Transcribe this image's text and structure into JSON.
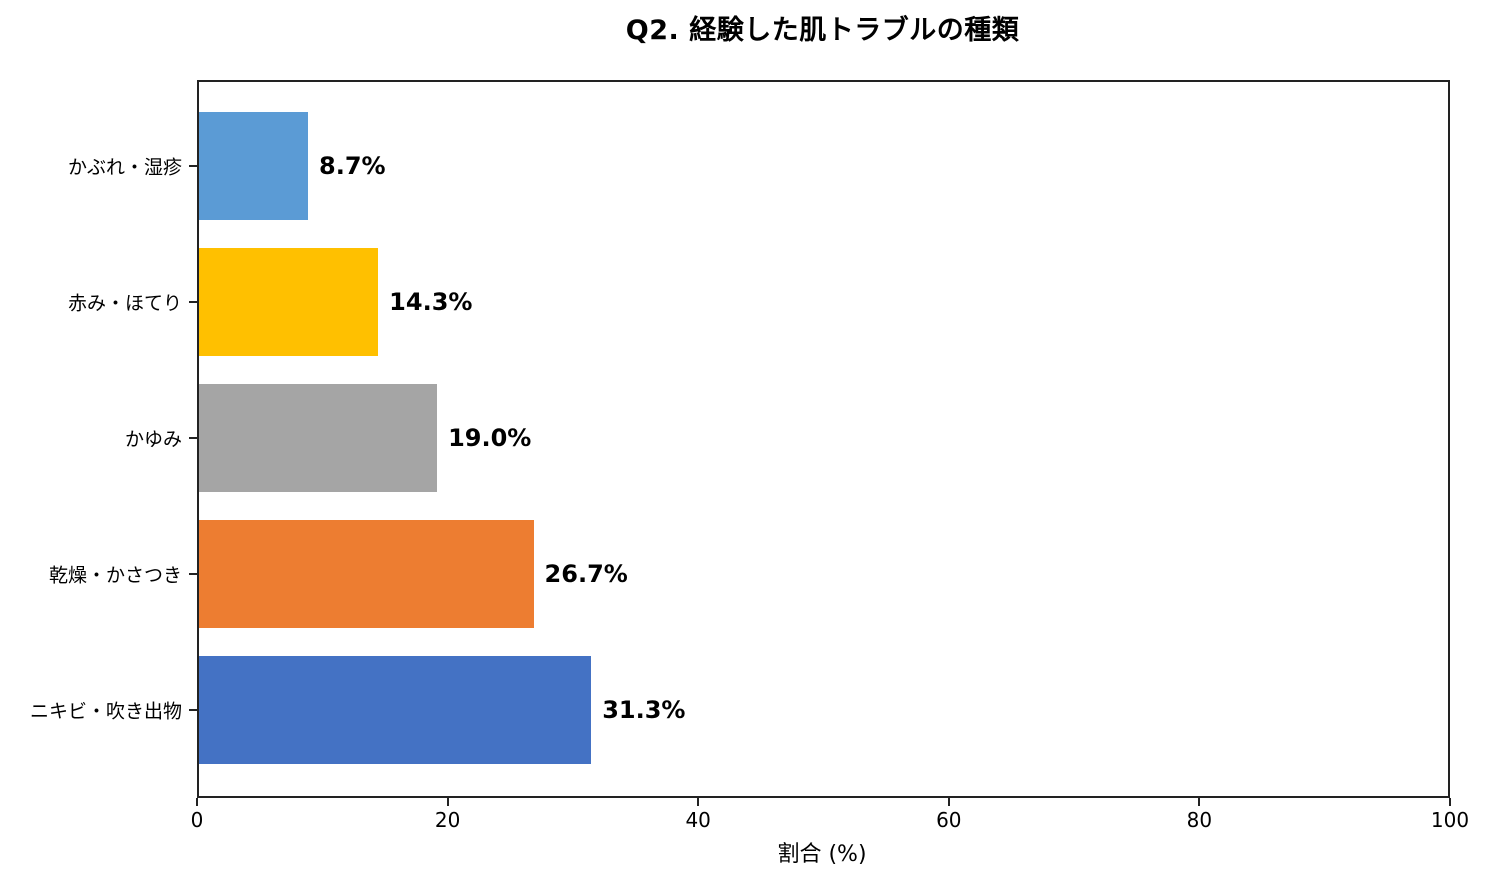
{
  "chart_data": {
    "type": "bar",
    "orientation": "horizontal",
    "title": "Q2. 経験した肌トラブルの種類",
    "xlabel": "割合 (%)",
    "ylabel": "",
    "xlim": [
      0,
      100
    ],
    "xticks": [
      "0",
      "20",
      "40",
      "60",
      "80",
      "100"
    ],
    "grid": false,
    "categories": [
      "ニキビ・吹き出物",
      "乾燥・かさつき",
      "かゆみ",
      "赤み・ほてり",
      "かぶれ・湿疹"
    ],
    "values": [
      31.3,
      26.7,
      19.0,
      14.3,
      8.7
    ],
    "value_labels": [
      "31.3%",
      "26.7%",
      "19.0%",
      "14.3%",
      "8.7%"
    ],
    "colors": [
      "#4472c4",
      "#ed7d31",
      "#a5a5a5",
      "#ffc000",
      "#5b9bd5"
    ]
  },
  "bars_top_to_bottom": [
    {
      "label": "かぶれ・湿疹",
      "value": 8.7,
      "text": "8.7%",
      "color": "#5b9bd5"
    },
    {
      "label": "赤み・ほてり",
      "value": 14.3,
      "text": "14.3%",
      "color": "#ffc000"
    },
    {
      "label": "かゆみ",
      "value": 19.0,
      "text": "19.0%",
      "color": "#a5a5a5"
    },
    {
      "label": "乾燥・かさつき",
      "value": 26.7,
      "text": "26.7%",
      "color": "#ed7d31"
    },
    {
      "label": "ニキビ・吹き出物",
      "value": 31.3,
      "text": "31.3%",
      "color": "#4472c4"
    }
  ]
}
